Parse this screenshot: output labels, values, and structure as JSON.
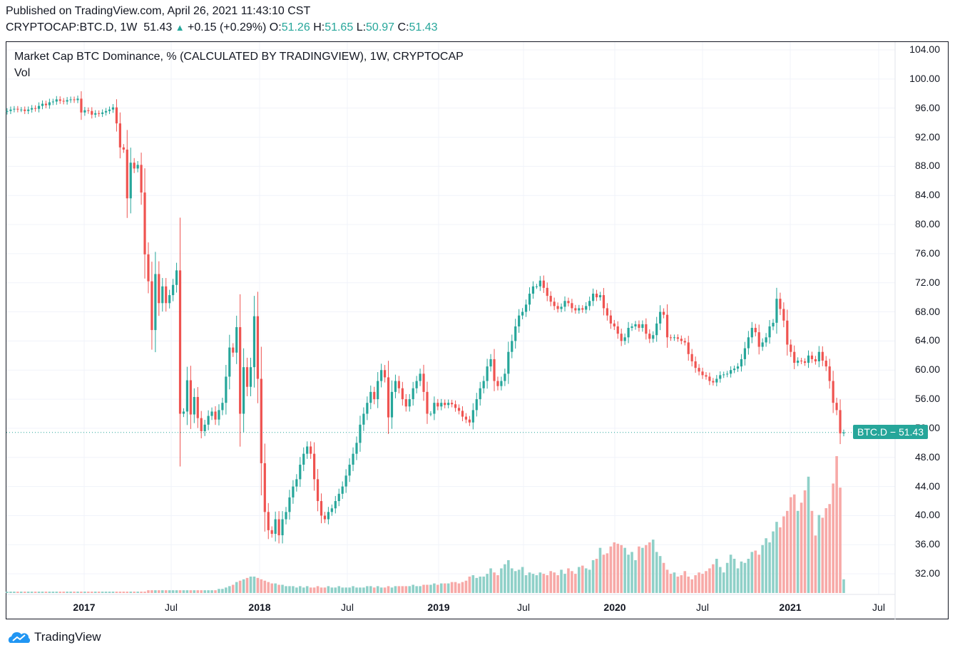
{
  "header": {
    "published": "Published on TradingView.com, April 26, 2021 11:43:10 CST",
    "symbol": "CRYPTOCAP:BTC.D, 1W",
    "last": "51.43",
    "change": "+0.15 (+0.29%)",
    "o_label": "O:",
    "o": "51.26",
    "h_label": "H:",
    "h": "51.65",
    "l_label": "L:",
    "l": "50.97",
    "c_label": "C:",
    "c": "51.43"
  },
  "legend": {
    "title": "Market Cap BTC Dominance, % (CALCULATED BY TRADINGVIEW), 1W, CRYPTOCAP",
    "volume": "Vol"
  },
  "price_tag": "BTC.D − 51.43",
  "logo": "TradingView",
  "colors": {
    "up": "#26a69a",
    "down": "#ef5350",
    "up_vol": "#8fd0c8",
    "down_vol": "#f7a9a7",
    "grid": "#f0f3fa"
  },
  "chart_data": {
    "type": "candlestick",
    "title": "Market Cap BTC Dominance, % (CALCULATED BY TRADINGVIEW), 1W, CRYPTOCAP",
    "ylim": [
      30,
      104
    ],
    "y_ticks": [
      "104.00",
      "100.00",
      "96.00",
      "92.00",
      "88.00",
      "84.00",
      "80.00",
      "76.00",
      "72.00",
      "68.00",
      "64.00",
      "60.00",
      "56.00",
      "52.00",
      "48.00",
      "44.00",
      "40.00",
      "36.00",
      "32.00"
    ],
    "x_ticks": [
      {
        "label": "2017",
        "year": true
      },
      {
        "label": "Jul",
        "year": false
      },
      {
        "label": "2018",
        "year": true
      },
      {
        "label": "Jul",
        "year": false
      },
      {
        "label": "2019",
        "year": true
      },
      {
        "label": "Jul",
        "year": false
      },
      {
        "label": "2020",
        "year": true
      },
      {
        "label": "Jul",
        "year": false
      },
      {
        "label": "2021",
        "year": true
      },
      {
        "label": "Jul",
        "year": false
      }
    ],
    "last_price": 51.43,
    "first_open": 95.5,
    "weekly_close": [
      95.6,
      95.8,
      95.9,
      95.8,
      95.8,
      95.6,
      95.8,
      96.0,
      95.9,
      96.3,
      96.6,
      96.4,
      96.8,
      96.9,
      97.2,
      97.0,
      96.9,
      97.1,
      97.2,
      97.1,
      97.3,
      95.4,
      95.7,
      95.6,
      95.1,
      95.3,
      95.2,
      95.4,
      95.6,
      95.8,
      96.1,
      93.9,
      90.6,
      90.3,
      83.6,
      88.5,
      87.7,
      88.2,
      84.4,
      75.9,
      72.2,
      65.5,
      73.2,
      69.2,
      71.5,
      69.2,
      70.3,
      71.7,
      73.7,
      54.0,
      54.3,
      58.6,
      53.9,
      56.3,
      53.4,
      51.6,
      52.5,
      53.7,
      54.3,
      53.2,
      54.5,
      55.5,
      59.1,
      63.1,
      62.4,
      65.9,
      54.0,
      60.4,
      57.7,
      60.4,
      67.4,
      58.8,
      47.2,
      40.5,
      38,
      37.5,
      39.5,
      37.3,
      39.5,
      40.5,
      42.5,
      44,
      45,
      47,
      48.5,
      49.5,
      48.5,
      45,
      42,
      40,
      39.5,
      40.5,
      41,
      42,
      43,
      44,
      45.5,
      47,
      48.5,
      50,
      52.5,
      54,
      55.5,
      57,
      56,
      58.5,
      60,
      59,
      53.5,
      57,
      58.5,
      57.5,
      56,
      55,
      56,
      57.5,
      58.5,
      59.5,
      57,
      54,
      54,
      55.5,
      55,
      55.5,
      55.2,
      55.5,
      55.3,
      54.8,
      54.4,
      53.6,
      53.2,
      52.8,
      54.5,
      56,
      57.5,
      58.5,
      60.5,
      61.5,
      58.5,
      57.8,
      58.5,
      59.5,
      62.5,
      64,
      66,
      67.5,
      68,
      69,
      70.5,
      71.5,
      71.5,
      72.3,
      71.3,
      70.2,
      69.4,
      68.8,
      68.4,
      68.7,
      69.5,
      69.2,
      68.5,
      68.2,
      68.5,
      68.3,
      68.8,
      69.5,
      70.5,
      70,
      70.3,
      68.5,
      67.5,
      66.4,
      66,
      65,
      64,
      64.5,
      65.8,
      66,
      66.3,
      65.8,
      66.3,
      65,
      64.3,
      64.8,
      66.4,
      68,
      67.6,
      64.5,
      64.4,
      64.5,
      64.3,
      64,
      63.8,
      62.2,
      61.2,
      60.3,
      59.8,
      59.3,
      59.1,
      58.5,
      58.3,
      58.8,
      59.3,
      59.4,
      59.5,
      60,
      60.2,
      60.5,
      61.5,
      63,
      64.5,
      65.8,
      65.2,
      63.2,
      63.8,
      64.5,
      66,
      66.5,
      69.8,
      68.4,
      66.8,
      63.5,
      62.5,
      61,
      61.3,
      61.2,
      61,
      62,
      61.5,
      61.2,
      62.5,
      61.3,
      60.5,
      58.5,
      55.5,
      54.5,
      51.3,
      51.43
    ],
    "weekly_volume_relative": [
      1,
      1,
      1,
      1,
      1,
      1,
      1,
      1,
      1,
      1,
      1,
      1,
      1,
      1,
      1,
      1,
      1,
      1,
      1,
      1,
      1,
      1,
      1,
      1,
      1,
      1,
      1,
      1,
      1,
      1,
      1,
      1,
      1,
      1,
      1,
      1,
      1,
      1,
      1,
      1,
      2,
      2,
      2,
      2,
      2,
      2,
      2,
      2,
      2,
      2,
      2,
      2,
      2,
      2,
      2,
      2,
      2,
      2,
      2,
      2,
      3,
      3,
      4,
      5,
      6,
      8,
      9,
      10,
      11,
      12,
      12,
      11,
      10,
      9,
      8,
      7,
      7,
      6,
      6,
      5,
      5,
      5,
      4,
      5,
      4,
      5,
      4,
      4,
      5,
      4,
      4,
      5,
      4,
      4,
      5,
      4,
      4,
      4,
      5,
      4,
      4,
      4,
      5,
      5,
      4,
      5,
      4,
      4,
      5,
      4,
      5,
      5,
      5,
      5,
      5,
      6,
      5,
      5,
      6,
      6,
      6,
      7,
      6,
      7,
      7,
      7,
      8,
      8,
      7,
      8,
      9,
      12,
      13,
      11,
      12,
      12,
      14,
      18,
      15,
      13,
      18,
      21,
      24,
      18,
      16,
      17,
      19,
      13,
      15,
      14,
      13,
      15,
      14,
      13,
      16,
      15,
      13,
      17,
      14,
      18,
      16,
      14,
      19,
      20,
      18,
      17,
      24,
      25,
      33,
      28,
      29,
      34,
      37,
      36,
      35,
      33,
      28,
      30,
      24,
      34,
      33,
      35,
      37,
      39,
      30,
      27,
      22,
      17,
      14,
      15,
      12,
      13,
      16,
      12,
      10,
      13,
      15,
      14,
      16,
      18,
      21,
      25,
      19,
      15,
      22,
      28,
      25,
      18,
      23,
      22,
      25,
      30,
      31,
      28,
      35,
      40,
      37,
      45,
      52,
      48,
      56,
      60,
      70,
      72,
      60,
      66,
      75,
      85,
      60,
      42,
      57,
      55,
      62,
      65,
      80,
      100,
      77,
      10
    ]
  }
}
